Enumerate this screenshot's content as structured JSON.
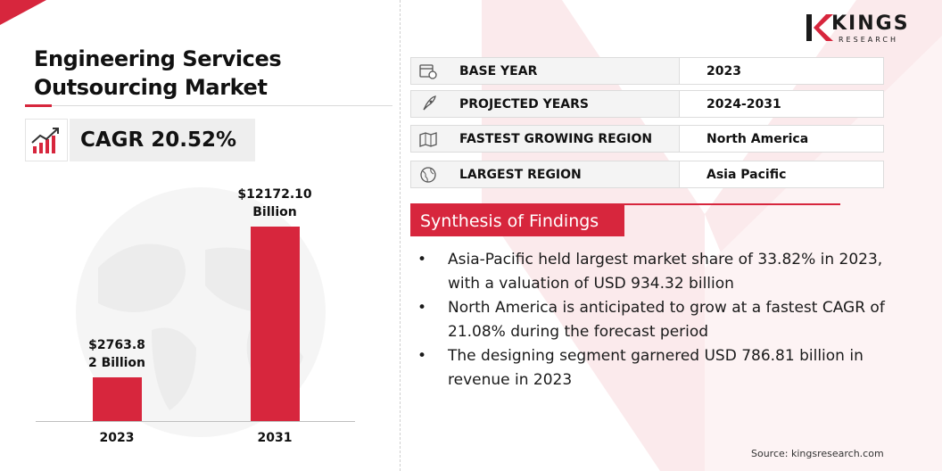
{
  "title_line1": "Engineering Services",
  "title_line2": "Outsourcing Market",
  "cagr_text": "CAGR 20.52%",
  "logo": {
    "name": "KINGS",
    "sub": "RESEARCH"
  },
  "info_rows": [
    {
      "label": "BASE YEAR",
      "value": "2023",
      "icon": "calendar-icon"
    },
    {
      "label": "PROJECTED YEARS",
      "value": "2024-2031",
      "icon": "rocket-icon"
    },
    {
      "label": "FASTEST GROWING REGION",
      "value": "North America",
      "icon": "map-icon"
    },
    {
      "label": "LARGEST REGION",
      "value": "Asia Pacific",
      "icon": "globe-icon"
    }
  ],
  "synthesis_title": "Synthesis of Findings",
  "findings": [
    "Asia-Pacific held largest market share of 33.82% in 2023, with a valuation of USD 934.32 billion",
    "North America is anticipated to grow at a fastest CAGR of 21.08% during the forecast period",
    "The designing segment garnered USD 786.81 billion in revenue in 2023"
  ],
  "source": "Source: kingsresearch.com",
  "colors": {
    "accent": "#d7263d",
    "text": "#111111"
  },
  "chart_data": {
    "type": "bar",
    "categories": [
      "2023",
      "2031"
    ],
    "values": [
      2763.82,
      12172.1
    ],
    "data_labels": [
      [
        "$2763.8",
        "2 Billion"
      ],
      [
        "$12172.10",
        "Billion"
      ]
    ],
    "unit": "USD Billion",
    "title": "",
    "xlabel": "",
    "ylabel": "",
    "grid": false
  }
}
